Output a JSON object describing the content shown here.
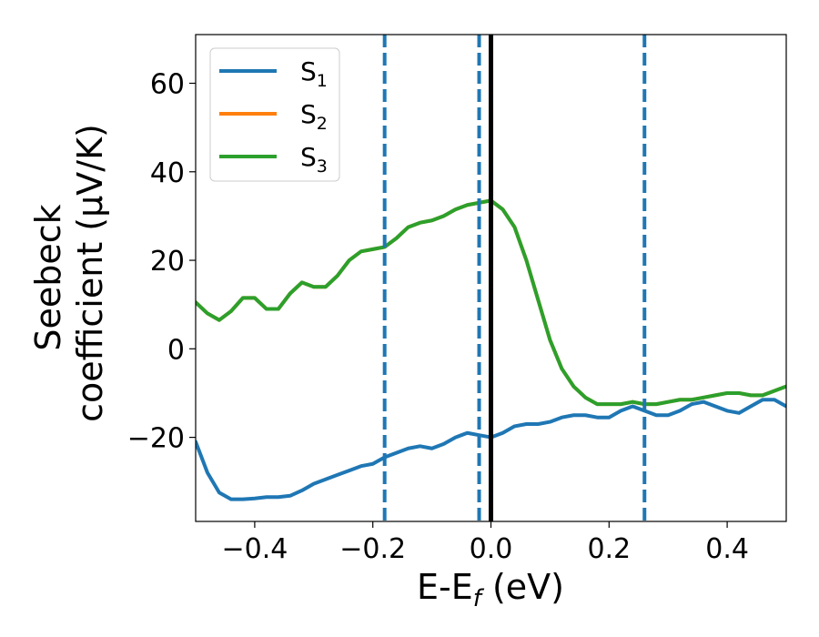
{
  "chart_data": {
    "type": "line",
    "xlabel": "E-E",
    "xlabel_sub": "f",
    "xlabel_unit": " (eV)",
    "ylabel_line1": "Seebeck",
    "ylabel_line2": "coefficient  (μV/K)",
    "xlim": [
      -0.5,
      0.5
    ],
    "ylim": [
      -39,
      71
    ],
    "x_ticks": [
      -0.4,
      -0.2,
      0.0,
      0.2,
      0.4
    ],
    "x_tick_labels": [
      "−0.4",
      "−0.2",
      "0.0",
      "0.2",
      "0.4"
    ],
    "y_ticks": [
      -20,
      0,
      20,
      40,
      60
    ],
    "y_tick_labels": [
      "−20",
      "0",
      "20",
      "40",
      "60"
    ],
    "legend_position": "top-left",
    "vlines": [
      {
        "x": -0.18,
        "style": "dashed",
        "color": "#1f77b4"
      },
      {
        "x": -0.02,
        "style": "dashed",
        "color": "#1f77b4"
      },
      {
        "x": 0.26,
        "style": "dashed",
        "color": "#1f77b4"
      },
      {
        "x": 0.0,
        "style": "solid",
        "color": "#000000"
      }
    ],
    "series": [
      {
        "name": "S1",
        "label_base": "S",
        "label_sub": "1",
        "color": "#1f77b4",
        "x": [
          -0.5,
          -0.48,
          -0.46,
          -0.44,
          -0.42,
          -0.4,
          -0.38,
          -0.36,
          -0.34,
          -0.32,
          -0.3,
          -0.28,
          -0.26,
          -0.24,
          -0.22,
          -0.2,
          -0.18,
          -0.16,
          -0.14,
          -0.12,
          -0.1,
          -0.08,
          -0.06,
          -0.04,
          -0.02,
          0.0,
          0.02,
          0.04,
          0.06,
          0.08,
          0.1,
          0.12,
          0.14,
          0.16,
          0.18,
          0.2,
          0.22,
          0.24,
          0.26,
          0.28,
          0.3,
          0.32,
          0.34,
          0.36,
          0.38,
          0.4,
          0.42,
          0.44,
          0.46,
          0.48,
          0.5
        ],
        "y": [
          -21,
          -28,
          -32.5,
          -34,
          -34,
          -33.8,
          -33.5,
          -33.5,
          -33.2,
          -32,
          -30.5,
          -29.5,
          -28.5,
          -27.5,
          -26.5,
          -26,
          -24.5,
          -23.5,
          -22.5,
          -22,
          -22.5,
          -21.5,
          -20,
          -19,
          -19.5,
          -20,
          -19,
          -17.5,
          -17,
          -17,
          -16.5,
          -15.5,
          -15,
          -15,
          -15.5,
          -15.5,
          -14,
          -13,
          -14,
          -15,
          -15,
          -14,
          -12.5,
          -12,
          -13,
          -14,
          -14.5,
          -13,
          -11.5,
          -11.5,
          -13
        ]
      },
      {
        "name": "S2",
        "label_base": "S",
        "label_sub": "2",
        "color": "#ff7f0e",
        "x": [
          -0.5,
          -0.48,
          -0.46,
          -0.44,
          -0.42,
          -0.4,
          -0.38,
          -0.36,
          -0.34,
          -0.32,
          -0.3,
          -0.28,
          -0.26,
          -0.24,
          -0.22,
          -0.2,
          -0.18,
          -0.16,
          -0.14,
          -0.12,
          -0.1,
          -0.08,
          -0.06,
          -0.04,
          -0.02,
          0.0,
          0.02,
          0.04,
          0.06,
          0.08,
          0.1,
          0.12,
          0.14,
          0.16,
          0.18,
          0.2,
          0.22,
          0.24,
          0.26,
          0.28,
          0.3,
          0.32,
          0.34,
          0.36,
          0.38,
          0.4,
          0.42,
          0.44,
          0.46,
          0.48,
          0.5
        ],
        "y": [
          10.5,
          8,
          6.5,
          8.5,
          11.5,
          11.5,
          9,
          9,
          12.5,
          15,
          14,
          14,
          16.5,
          20,
          22,
          22.5,
          23,
          25,
          27.5,
          28.5,
          29,
          30,
          31.5,
          32.5,
          33,
          33.5,
          31.5,
          27.5,
          20,
          11,
          2,
          -4.5,
          -8.5,
          -11,
          -12.5,
          -12.5,
          -12.5,
          -12,
          -12.5,
          -12.5,
          -12,
          -11.5,
          -11.5,
          -11,
          -10.5,
          -10,
          -10,
          -10.5,
          -10.5,
          -9.5,
          -8.5
        ]
      },
      {
        "name": "S3",
        "label_base": "S",
        "label_sub": "3",
        "color": "#2ca02c",
        "x": [
          -0.5,
          -0.48,
          -0.46,
          -0.44,
          -0.42,
          -0.4,
          -0.38,
          -0.36,
          -0.34,
          -0.32,
          -0.3,
          -0.28,
          -0.26,
          -0.24,
          -0.22,
          -0.2,
          -0.18,
          -0.16,
          -0.14,
          -0.12,
          -0.1,
          -0.08,
          -0.06,
          -0.04,
          -0.02,
          0.0,
          0.02,
          0.04,
          0.06,
          0.08,
          0.1,
          0.12,
          0.14,
          0.16,
          0.18,
          0.2,
          0.22,
          0.24,
          0.26,
          0.28,
          0.3,
          0.32,
          0.34,
          0.36,
          0.38,
          0.4,
          0.42,
          0.44,
          0.46,
          0.48,
          0.5
        ],
        "y": [
          10.5,
          8,
          6.5,
          8.5,
          11.5,
          11.5,
          9,
          9,
          12.5,
          15,
          14,
          14,
          16.5,
          20,
          22,
          22.5,
          23,
          25,
          27.5,
          28.5,
          29,
          30,
          31.5,
          32.5,
          33,
          33.5,
          31.5,
          27.5,
          20,
          11,
          2,
          -4.5,
          -8.5,
          -11,
          -12.5,
          -12.5,
          -12.5,
          -12,
          -12.5,
          -12.5,
          -12,
          -11.5,
          -11.5,
          -11,
          -10.5,
          -10,
          -10,
          -10.5,
          -10.5,
          -9.5,
          -8.5
        ]
      }
    ]
  }
}
